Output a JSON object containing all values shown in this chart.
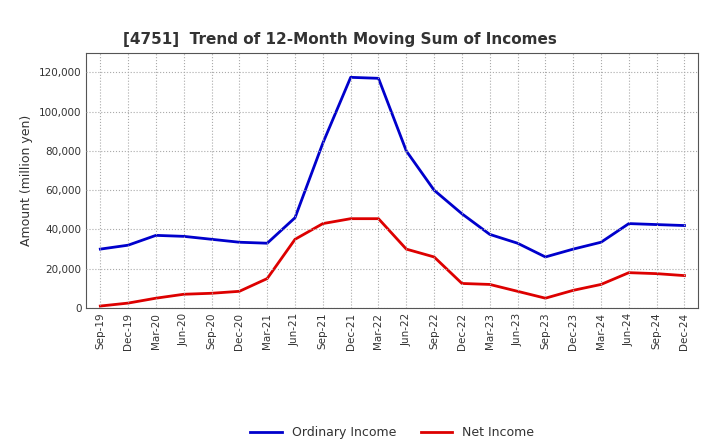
{
  "title": "[4751]  Trend of 12-Month Moving Sum of Incomes",
  "ylabel": "Amount (million yen)",
  "background_color": "#ffffff",
  "grid_color": "#aaaaaa",
  "ordinary_income_color": "#0000cc",
  "net_income_color": "#dd0000",
  "ylim": [
    0,
    130000
  ],
  "yticks": [
    0,
    20000,
    40000,
    60000,
    80000,
    100000,
    120000
  ],
  "labels": [
    "Sep-19",
    "Dec-19",
    "Mar-20",
    "Jun-20",
    "Sep-20",
    "Dec-20",
    "Mar-21",
    "Jun-21",
    "Sep-21",
    "Dec-21",
    "Mar-22",
    "Jun-22",
    "Sep-22",
    "Dec-22",
    "Mar-23",
    "Jun-23",
    "Sep-23",
    "Dec-23",
    "Mar-24",
    "Jun-24",
    "Sep-24",
    "Dec-24"
  ],
  "ordinary_income": [
    30000,
    32000,
    37000,
    36500,
    35000,
    33500,
    33000,
    46000,
    84000,
    117500,
    117000,
    80000,
    60000,
    48000,
    37500,
    33000,
    26000,
    30000,
    33500,
    43000,
    42500,
    42000
  ],
  "net_income": [
    1000,
    2500,
    5000,
    7000,
    7500,
    8500,
    15000,
    35000,
    43000,
    45500,
    45500,
    30000,
    26000,
    12500,
    12000,
    8500,
    5000,
    9000,
    12000,
    18000,
    17500,
    16500
  ]
}
